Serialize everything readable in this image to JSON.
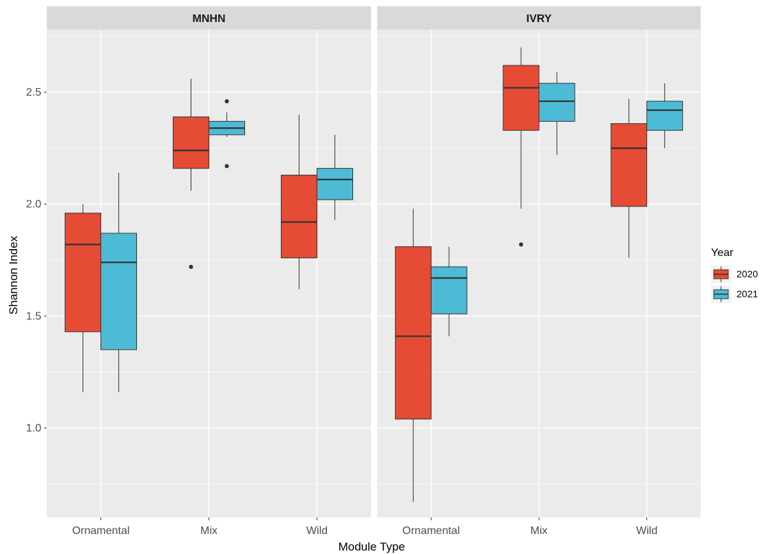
{
  "chart_data": {
    "type": "boxplot",
    "xlabel": "Module Type",
    "ylabel": "Shannon Index",
    "ylim": [
      0.6,
      2.78
    ],
    "y_ticks": [
      "1.0",
      "1.5",
      "2.0",
      "2.5"
    ],
    "y_tick_values": [
      1.0,
      1.5,
      2.0,
      2.5
    ],
    "categories": [
      "Ornamental",
      "Mix",
      "Wild"
    ],
    "legend": {
      "title": "Year",
      "placement": "right",
      "items": [
        {
          "label": "2020",
          "color": "#E64B35"
        },
        {
          "label": "2021",
          "color": "#4DBBD5"
        }
      ]
    },
    "colors": {
      "2020": "#E64B35",
      "2021": "#4DBBD5",
      "panel_bg": "#EBEBEB",
      "strip_bg": "#D9D9D9",
      "grid": "#FFFFFF"
    },
    "panels": [
      {
        "strip": "MNHN",
        "boxes": [
          {
            "category": "Ornamental",
            "year": "2020",
            "min": 1.16,
            "q1": 1.43,
            "median": 1.82,
            "q3": 1.96,
            "max": 2.0,
            "outliers": []
          },
          {
            "category": "Ornamental",
            "year": "2021",
            "min": 1.16,
            "q1": 1.35,
            "median": 1.74,
            "q3": 1.87,
            "max": 2.14,
            "outliers": []
          },
          {
            "category": "Mix",
            "year": "2020",
            "min": 2.06,
            "q1": 2.16,
            "median": 2.24,
            "q3": 2.39,
            "max": 2.56,
            "outliers": [
              1.72
            ]
          },
          {
            "category": "Mix",
            "year": "2021",
            "min": 2.3,
            "q1": 2.31,
            "median": 2.34,
            "q3": 2.37,
            "max": 2.41,
            "outliers": [
              2.17,
              2.46
            ]
          },
          {
            "category": "Wild",
            "year": "2020",
            "min": 1.62,
            "q1": 1.76,
            "median": 1.92,
            "q3": 2.13,
            "max": 2.4,
            "outliers": []
          },
          {
            "category": "Wild",
            "year": "2021",
            "min": 1.93,
            "q1": 2.02,
            "median": 2.11,
            "q3": 2.16,
            "max": 2.31,
            "outliers": []
          }
        ]
      },
      {
        "strip": "IVRY",
        "boxes": [
          {
            "category": "Ornamental",
            "year": "2020",
            "min": 0.67,
            "q1": 1.04,
            "median": 1.41,
            "q3": 1.81,
            "max": 1.98,
            "outliers": []
          },
          {
            "category": "Ornamental",
            "year": "2021",
            "min": 1.41,
            "q1": 1.51,
            "median": 1.67,
            "q3": 1.72,
            "max": 1.81,
            "outliers": []
          },
          {
            "category": "Mix",
            "year": "2020",
            "min": 1.98,
            "q1": 2.33,
            "median": 2.52,
            "q3": 2.62,
            "max": 2.7,
            "outliers": [
              1.82
            ]
          },
          {
            "category": "Mix",
            "year": "2021",
            "min": 2.22,
            "q1": 2.37,
            "median": 2.46,
            "q3": 2.54,
            "max": 2.59,
            "outliers": []
          },
          {
            "category": "Wild",
            "year": "2020",
            "min": 1.76,
            "q1": 1.99,
            "median": 2.25,
            "q3": 2.36,
            "max": 2.47,
            "outliers": []
          },
          {
            "category": "Wild",
            "year": "2021",
            "min": 2.25,
            "q1": 2.33,
            "median": 2.42,
            "q3": 2.46,
            "max": 2.54,
            "outliers": []
          }
        ]
      }
    ]
  }
}
